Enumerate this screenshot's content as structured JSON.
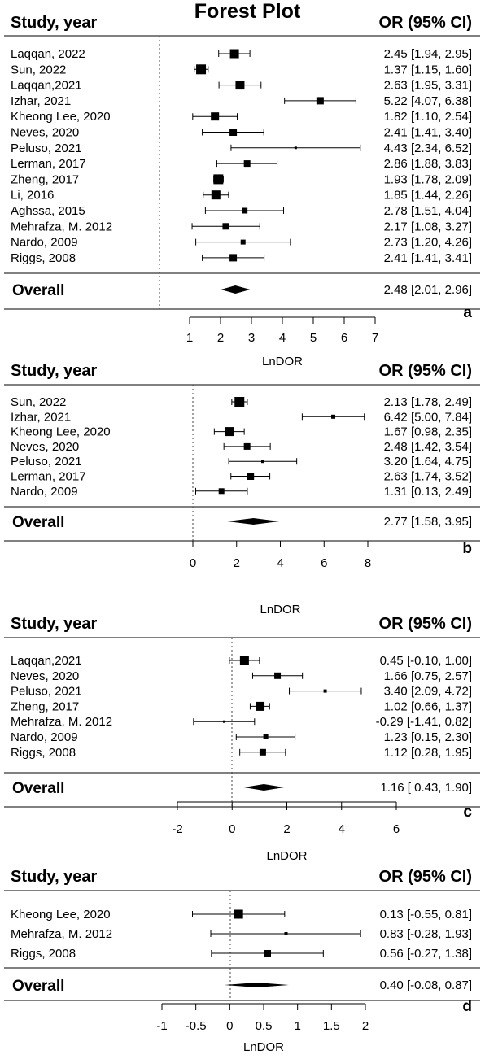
{
  "figure_title": "Forest Plot",
  "chart_data": [
    {
      "type": "forest",
      "panel_label": "a",
      "col_study": "Study, year",
      "col_or": "OR (95% CI)",
      "xlabel": "LnDOR",
      "overall_label": "Overall",
      "xlim": [
        1,
        7
      ],
      "ticks": [
        1,
        2,
        3,
        4,
        5,
        6,
        7
      ],
      "tick_labels": [
        "1",
        "2",
        "3",
        "4",
        "5",
        "6",
        "7"
      ],
      "ref_line": 0,
      "studies": [
        {
          "name": "Laqqan, 2022",
          "est": 2.45,
          "lo": 1.94,
          "hi": 2.95,
          "text": "2.45 [1.94, 2.95]"
        },
        {
          "name": "Sun, 2022",
          "est": 1.37,
          "lo": 1.15,
          "hi": 1.6,
          "text": "1.37 [1.15, 1.60]"
        },
        {
          "name": "Laqqan,2021",
          "est": 2.63,
          "lo": 1.95,
          "hi": 3.31,
          "text": "2.63 [1.95, 3.31]"
        },
        {
          "name": "Izhar, 2021",
          "est": 5.22,
          "lo": 4.07,
          "hi": 6.38,
          "text": "5.22 [4.07, 6.38]"
        },
        {
          "name": "Kheong Lee, 2020",
          "est": 1.82,
          "lo": 1.1,
          "hi": 2.54,
          "text": "1.82 [1.10, 2.54]"
        },
        {
          "name": "Neves, 2020",
          "est": 2.41,
          "lo": 1.41,
          "hi": 3.4,
          "text": "2.41 [1.41, 3.40]"
        },
        {
          "name": "Peluso, 2021",
          "est": 4.43,
          "lo": 2.34,
          "hi": 6.52,
          "text": "4.43 [2.34, 6.52]"
        },
        {
          "name": "Lerman, 2017",
          "est": 2.86,
          "lo": 1.88,
          "hi": 3.83,
          "text": "2.86 [1.88, 3.83]"
        },
        {
          "name": "Zheng, 2017",
          "est": 1.93,
          "lo": 1.78,
          "hi": 2.09,
          "text": "1.93 [1.78, 2.09]"
        },
        {
          "name": "Li, 2016",
          "est": 1.85,
          "lo": 1.44,
          "hi": 2.26,
          "text": "1.85 [1.44, 2.26]"
        },
        {
          "name": "Aghssa, 2015",
          "est": 2.78,
          "lo": 1.51,
          "hi": 4.04,
          "text": "2.78 [1.51, 4.04]"
        },
        {
          "name": "Mehrafza, M. 2012",
          "est": 2.17,
          "lo": 1.08,
          "hi": 3.27,
          "text": "2.17 [1.08, 3.27]"
        },
        {
          "name": "Nardo, 2009",
          "est": 2.73,
          "lo": 1.2,
          "hi": 4.26,
          "text": "2.73 [1.20, 4.26]"
        },
        {
          "name": "Riggs, 2008",
          "est": 2.41,
          "lo": 1.41,
          "hi": 3.41,
          "text": "2.41 [1.41, 3.41]"
        }
      ],
      "overall": {
        "est": 2.48,
        "lo": 2.01,
        "hi": 2.96,
        "text": "2.48 [2.01, 2.96]"
      }
    },
    {
      "type": "forest",
      "panel_label": "b",
      "col_study": "Study, year",
      "col_or": "OR (95% CI)",
      "xlabel": "LnDOR",
      "overall_label": "Overall",
      "xlim": [
        0,
        8
      ],
      "ticks": [
        0,
        2,
        4,
        6,
        8
      ],
      "tick_labels": [
        "0",
        "2",
        "4",
        "6",
        "8"
      ],
      "ref_line": 0,
      "studies": [
        {
          "name": "Sun, 2022",
          "est": 2.13,
          "lo": 1.78,
          "hi": 2.49,
          "text": "2.13 [1.78, 2.49]"
        },
        {
          "name": "Izhar, 2021",
          "est": 6.42,
          "lo": 5.0,
          "hi": 7.84,
          "text": "6.42 [5.00, 7.84]"
        },
        {
          "name": "Kheong Lee, 2020",
          "est": 1.67,
          "lo": 0.98,
          "hi": 2.35,
          "text": "1.67 [0.98, 2.35]"
        },
        {
          "name": "Neves, 2020",
          "est": 2.48,
          "lo": 1.42,
          "hi": 3.54,
          "text": "2.48 [1.42, 3.54]"
        },
        {
          "name": "Peluso, 2021",
          "est": 3.2,
          "lo": 1.64,
          "hi": 4.75,
          "text": "3.20 [1.64, 4.75]"
        },
        {
          "name": "Lerman, 2017",
          "est": 2.63,
          "lo": 1.74,
          "hi": 3.52,
          "text": "2.63 [1.74, 3.52]"
        },
        {
          "name": "Nardo, 2009",
          "est": 1.31,
          "lo": 0.13,
          "hi": 2.49,
          "text": "1.31 [0.13, 2.49]"
        }
      ],
      "overall": {
        "est": 2.77,
        "lo": 1.58,
        "hi": 3.95,
        "text": "2.77 [1.58, 3.95]"
      }
    },
    {
      "type": "forest",
      "panel_label": "c",
      "col_study": "Study, year",
      "col_or": "OR (95% CI)",
      "xlabel": "LnDOR",
      "overall_label": "Overall",
      "xlim": [
        -2,
        6
      ],
      "ticks": [
        -2,
        0,
        2,
        4,
        6
      ],
      "tick_labels": [
        "-2",
        "0",
        "2",
        "4",
        "6"
      ],
      "ref_line": 0,
      "studies": [
        {
          "name": "Laqqan,2021",
          "est": 0.45,
          "lo": -0.1,
          "hi": 1.0,
          "text": "0.45 [-0.10, 1.00]"
        },
        {
          "name": "Neves, 2020",
          "est": 1.66,
          "lo": 0.75,
          "hi": 2.57,
          "text": "1.66 [0.75, 2.57]"
        },
        {
          "name": "Peluso, 2021",
          "est": 3.4,
          "lo": 2.09,
          "hi": 4.72,
          "text": "3.40 [2.09, 4.72]"
        },
        {
          "name": "Zheng, 2017",
          "est": 1.02,
          "lo": 0.66,
          "hi": 1.37,
          "text": "1.02 [0.66, 1.37]"
        },
        {
          "name": "Mehrafza, M. 2012",
          "est": -0.29,
          "lo": -1.41,
          "hi": 0.82,
          "text": "-0.29 [-1.41, 0.82]"
        },
        {
          "name": "Nardo, 2009",
          "est": 1.23,
          "lo": 0.15,
          "hi": 2.3,
          "text": "1.23 [0.15, 2.30]"
        },
        {
          "name": "Riggs, 2008",
          "est": 1.12,
          "lo": 0.28,
          "hi": 1.95,
          "text": "1.12 [0.28, 1.95]"
        }
      ],
      "overall": {
        "est": 1.16,
        "lo": 0.43,
        "hi": 1.9,
        "text": "1.16 [ 0.43, 1.90]"
      }
    },
    {
      "type": "forest",
      "panel_label": "d",
      "col_study": "Study, year",
      "col_or": "OR (95% CI)",
      "xlabel": "LnDOR",
      "overall_label": "Overall",
      "xlim": [
        -1,
        2
      ],
      "ticks": [
        -1,
        -0.5,
        0,
        0.5,
        1,
        1.5,
        2
      ],
      "tick_labels": [
        "-1",
        "-0.5",
        "0",
        "0.5",
        "1",
        "1.5",
        "2"
      ],
      "ref_line": 0,
      "studies": [
        {
          "name": "Kheong Lee, 2020",
          "est": 0.13,
          "lo": -0.55,
          "hi": 0.81,
          "text": "0.13 [-0.55, 0.81]"
        },
        {
          "name": "Mehrafza, M. 2012",
          "est": 0.83,
          "lo": -0.28,
          "hi": 1.93,
          "text": "0.83 [-0.28, 1.93]"
        },
        {
          "name": "Riggs, 2008",
          "est": 0.56,
          "lo": -0.27,
          "hi": 1.38,
          "text": "0.56 [-0.27, 1.38]"
        }
      ],
      "overall": {
        "est": 0.4,
        "lo": -0.08,
        "hi": 0.87,
        "text": "0.40 [-0.08, 0.87]"
      }
    }
  ]
}
